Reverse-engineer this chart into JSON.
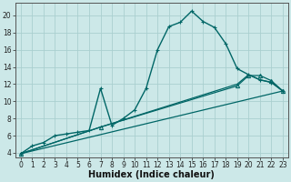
{
  "bg_color": "#cce8e8",
  "grid_color": "#aacfcf",
  "line_color": "#006666",
  "xlabel": "Humidex (Indice chaleur)",
  "xlabel_fontsize": 7,
  "tick_fontsize": 5.5,
  "ylim": [
    3.5,
    21.5
  ],
  "xlim": [
    -0.5,
    23.5
  ],
  "yticks": [
    4,
    6,
    8,
    10,
    12,
    14,
    16,
    18,
    20
  ],
  "xticks": [
    0,
    1,
    2,
    3,
    4,
    5,
    6,
    7,
    8,
    9,
    10,
    11,
    12,
    13,
    14,
    15,
    16,
    17,
    18,
    19,
    20,
    21,
    22,
    23
  ],
  "series": [
    {
      "x": [
        0,
        1,
        2,
        3,
        4,
        5,
        6,
        7,
        8,
        9,
        10,
        11,
        12,
        13,
        14,
        15,
        16,
        17,
        18,
        19,
        20,
        21,
        22,
        23
      ],
      "y": [
        3.9,
        4.8,
        5.2,
        6.0,
        6.2,
        6.4,
        6.6,
        11.5,
        7.2,
        8.0,
        9.0,
        11.5,
        16.0,
        18.7,
        19.2,
        20.5,
        19.3,
        18.6,
        16.7,
        13.8,
        13.1,
        12.5,
        12.2,
        11.2
      ],
      "marker": "+",
      "linestyle": "-",
      "linewidth": 1.0,
      "markersize": 3.5
    },
    {
      "x": [
        0,
        7,
        19,
        20,
        21,
        22,
        23
      ],
      "y": [
        3.9,
        7.0,
        12.0,
        13.1,
        12.5,
        12.2,
        11.2
      ],
      "marker": "None",
      "linestyle": "-",
      "linewidth": 0.9,
      "markersize": 0
    },
    {
      "x": [
        0,
        7,
        19,
        20,
        21,
        22,
        23
      ],
      "y": [
        3.9,
        7.0,
        11.8,
        13.0,
        13.0,
        12.4,
        11.2
      ],
      "marker": "^",
      "linestyle": "-",
      "linewidth": 0.9,
      "markersize": 3
    },
    {
      "x": [
        0,
        23
      ],
      "y": [
        3.9,
        11.2
      ],
      "marker": "None",
      "linestyle": "-",
      "linewidth": 0.9,
      "markersize": 0
    }
  ]
}
